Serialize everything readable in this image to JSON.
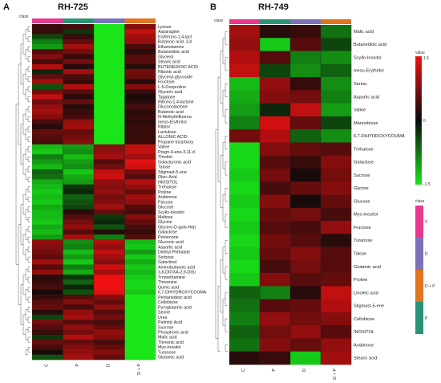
{
  "colors": {
    "C": "#e8398f",
    "D": "#7b72b8",
    "D+P": "#e0741f",
    "P": "#2a9576",
    "high": "#ee1111",
    "mid": "#0a0a0a",
    "low": "#19e619"
  },
  "chart_data": [
    {
      "type": "heatmap",
      "panel": "A",
      "title": "RH-725",
      "class_label": "class",
      "columns": [
        "C",
        "P",
        "D",
        "D + P"
      ],
      "col_classes": [
        "C",
        "P",
        "D",
        "D+P"
      ],
      "rows": [
        "Lyxose",
        "Asparagine",
        "Erythrono-1,4-lact",
        "Butanoic acid, 3,4",
        "Ethanolamine",
        "Butanedioic acid",
        "Glycerol",
        "Stearic acid",
        "BUTENEDIOIC ACID",
        "Ribonic acid",
        "Glyceryl-glycoside",
        "Fructose",
        "L-5-Oxoproline",
        "Glyceric acid",
        "Tagatose",
        "Ribono-1,4-lactone",
        "Gluconolactone",
        "Butanoic acid",
        "N-Methyltrifluoroa",
        "meso-Erythritol",
        "Ribitol",
        "Lactulose",
        "ALLONIC ACID",
        "Propane tricarboxy",
        "Valine",
        "Pregn-4-ene-3,11-d",
        "Threitol",
        "Galacturonic acid",
        "Talose",
        "Stigmast-5-ene",
        "Oleic Acid",
        "INOSITOL",
        "Trehalose",
        "Proline",
        "Arabinose",
        "Psicose",
        "Glucose",
        "Scyllo-Inositol",
        "Maltose",
        "Glycine",
        "Glycero-D-gulo-Hep",
        "Galactose",
        "Pentenone",
        "Gluconic acid",
        "Aspartic acid",
        "Diethyl Phthalate",
        "Sorbose",
        "Galactinol",
        "Aminobutanoic acid",
        "3,8-DIOXA-2,9-DISI",
        "Tromethamine",
        "Threonine",
        "Quinic acid",
        "6,7-DIHYDROXYCOUMA",
        "Pentanedioic acid",
        "Cellobiose",
        "Pyroglutamic acid",
        "Serine",
        "Urea",
        "Palmitic Acid",
        "Sucrose",
        "Phosphoric acid",
        "Malic acid",
        "Threonic acid",
        "Myo-Inositol",
        "Turanose",
        "Glutamic acid"
      ],
      "values": [
        [
          0.3,
          0.4,
          -1.5,
          0.8
        ],
        [
          0.3,
          -0.3,
          -1.5,
          1.2
        ],
        [
          -0.4,
          0.3,
          -1.5,
          1.0
        ],
        [
          -0.8,
          0.6,
          -1.5,
          0.9
        ],
        [
          -1.0,
          1.0,
          -1.5,
          0.4
        ],
        [
          0.5,
          0.7,
          -1.5,
          0.2
        ],
        [
          0.8,
          0.3,
          -1.5,
          0.5
        ],
        [
          0.4,
          0.7,
          -1.5,
          0.5
        ],
        [
          1.1,
          0.2,
          -1.5,
          0.2
        ],
        [
          -0.2,
          1.0,
          -1.5,
          0.7
        ],
        [
          0.6,
          0.4,
          -1.5,
          0.6
        ],
        [
          1.0,
          0.3,
          -1.5,
          0.2
        ],
        [
          -0.5,
          1.1,
          -1.5,
          0.8
        ],
        [
          0.7,
          0.5,
          -1.5,
          0.3
        ],
        [
          1.2,
          0.2,
          -1.5,
          0.1
        ],
        [
          0.7,
          0.6,
          -1.5,
          0.2
        ],
        [
          0.9,
          0.2,
          -1.5,
          0.4
        ],
        [
          1.0,
          0.3,
          -1.5,
          0.2
        ],
        [
          0.8,
          0.4,
          -1.5,
          0.3
        ],
        [
          0.4,
          0.9,
          -1.5,
          0.2
        ],
        [
          0.2,
          1.0,
          -1.5,
          0.3
        ],
        [
          0.6,
          0.6,
          -1.5,
          0.3
        ],
        [
          0.5,
          0.7,
          -1.5,
          0.3
        ],
        [
          0.4,
          0.8,
          -1.5,
          0.3
        ],
        [
          -1.2,
          -1.0,
          0.8,
          1.2
        ],
        [
          -1.3,
          -0.9,
          0.9,
          1.2
        ],
        [
          -0.8,
          -1.2,
          1.0,
          1.0
        ],
        [
          -1.0,
          -1.0,
          0.5,
          1.4
        ],
        [
          -1.2,
          -0.9,
          0.7,
          1.3
        ],
        [
          -0.6,
          -1.3,
          1.2,
          0.7
        ],
        [
          -0.7,
          -1.1,
          1.3,
          0.5
        ],
        [
          -1.1,
          -1.0,
          0.9,
          1.1
        ],
        [
          -1.2,
          -0.3,
          0.8,
          0.9
        ],
        [
          -1.3,
          -0.2,
          0.9,
          0.6
        ],
        [
          -1.2,
          -0.6,
          0.7,
          1.0
        ],
        [
          -1.3,
          -0.5,
          0.8,
          0.9
        ],
        [
          -1.1,
          -0.4,
          1.0,
          0.5
        ],
        [
          -1.2,
          0.2,
          0.6,
          0.4
        ],
        [
          -1.2,
          0.5,
          -0.3,
          0.8
        ],
        [
          -1.3,
          0.7,
          -0.2,
          0.6
        ],
        [
          -1.1,
          0.9,
          -0.5,
          0.4
        ],
        [
          -1.2,
          0.5,
          0.2,
          0.3
        ],
        [
          -1.0,
          1.0,
          -0.8,
          0.5
        ],
        [
          0.9,
          -0.9,
          1.1,
          -1.2
        ],
        [
          0.8,
          -0.8,
          0.9,
          -1.3
        ],
        [
          0.7,
          -1.2,
          1.2,
          -1.0
        ],
        [
          0.6,
          -1.0,
          1.0,
          -1.3
        ],
        [
          1.0,
          -1.3,
          0.8,
          -1.1
        ],
        [
          0.5,
          -0.8,
          1.3,
          -1.3
        ],
        [
          0.9,
          -1.1,
          1.0,
          -1.2
        ],
        [
          0.2,
          -0.3,
          1.5,
          -1.3
        ],
        [
          0.3,
          -0.6,
          1.5,
          -1.4
        ],
        [
          0.4,
          -0.2,
          1.5,
          -1.4
        ],
        [
          0.1,
          -0.5,
          1.4,
          -1.3
        ],
        [
          0.3,
          0.5,
          0.8,
          -1.5
        ],
        [
          0.5,
          0.8,
          0.6,
          -1.5
        ],
        [
          0.6,
          0.4,
          0.9,
          -1.5
        ],
        [
          0.2,
          0.9,
          0.5,
          -1.5
        ],
        [
          -0.4,
          1.0,
          0.7,
          -1.5
        ],
        [
          0.7,
          0.5,
          0.4,
          -1.5
        ],
        [
          0.5,
          0.9,
          0.6,
          -1.5
        ],
        [
          0.3,
          0.7,
          0.9,
          -1.5
        ],
        [
          -0.3,
          1.1,
          0.8,
          -1.5
        ],
        [
          0.6,
          0.6,
          0.4,
          -1.5
        ],
        [
          0.4,
          0.8,
          0.6,
          -1.5
        ],
        [
          0.1,
          0.9,
          0.8,
          -1.5
        ],
        [
          -0.5,
          1.0,
          0.6,
          -1.5
        ]
      ]
    },
    {
      "type": "heatmap",
      "panel": "B",
      "title": "RH-749",
      "class_label": "class",
      "columns": [
        "C",
        "P",
        "D",
        "D + P"
      ],
      "col_classes": [
        "C",
        "P",
        "D",
        "D+P"
      ],
      "rows": [
        "Malic acid",
        "Butanedioic acid",
        "Scyllo-Inositol",
        "meso-Erythritol",
        "Serine,",
        "Aspartic acid",
        "Valine",
        "Mannobiose",
        "6,7-DIHYDROXYCOUMA",
        "Trehalose",
        "Galactose",
        "Sucrose",
        "Glycine",
        "Glucose",
        "Myo-Inositol",
        "Fructose",
        "Turanose",
        "Talose",
        "Glutamic acid",
        "Proline",
        "Linoleic acid",
        "Stigmast-5-ene",
        "Cellobiose",
        "INOSITOL",
        "Arabinose",
        "Stearic acid"
      ],
      "values": [
        [
          1.0,
          0.2,
          0.3,
          -0.7
        ],
        [
          0.9,
          -1.3,
          0.5,
          -0.4
        ],
        [
          1.1,
          0.5,
          -0.8,
          -0.9
        ],
        [
          1.2,
          -0.4,
          -0.9,
          -0.6
        ],
        [
          -1.2,
          0.9,
          0.3,
          -0.9
        ],
        [
          -1.1,
          0.8,
          0.7,
          -0.8
        ],
        [
          -1.0,
          -0.2,
          1.2,
          -1.0
        ],
        [
          -0.8,
          1.3,
          0.6,
          -0.4
        ],
        [
          0.7,
          1.1,
          -0.6,
          -0.9
        ],
        [
          -1.4,
          0.8,
          0.6,
          0.5
        ],
        [
          -1.4,
          0.5,
          0.3,
          0.8
        ],
        [
          -1.3,
          0.7,
          0.1,
          0.7
        ],
        [
          -1.4,
          0.4,
          0.6,
          0.8
        ],
        [
          -1.3,
          0.8,
          0.1,
          0.6
        ],
        [
          -1.4,
          0.6,
          0.7,
          0.4
        ],
        [
          -1.3,
          0.5,
          0.4,
          0.9
        ],
        [
          -1.4,
          0.7,
          0.5,
          0.2
        ],
        [
          -1.3,
          0.6,
          0.8,
          0.5
        ],
        [
          -1.4,
          0.4,
          0.7,
          0.5
        ],
        [
          -1.3,
          0.8,
          0.5,
          0.6
        ],
        [
          -0.6,
          -0.8,
          0.2,
          1.2
        ],
        [
          -0.7,
          0.5,
          0.6,
          1.1
        ],
        [
          -0.8,
          0.9,
          0.7,
          0.8
        ],
        [
          -0.6,
          0.7,
          0.9,
          0.5
        ],
        [
          -0.7,
          0.8,
          0.6,
          0.9
        ],
        [
          0.2,
          0.3,
          -1.3,
          1.0
        ]
      ]
    }
  ],
  "legend": {
    "value_title": "value",
    "value_ticks": [
      "1.5",
      "0",
      "-1.5"
    ],
    "class_title": "class",
    "classes": [
      "C",
      "D",
      "D + P",
      "P"
    ]
  }
}
